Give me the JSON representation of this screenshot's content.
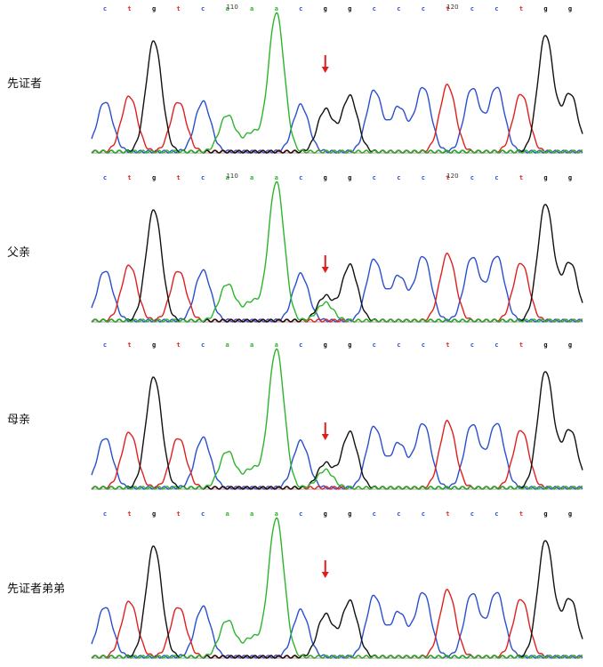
{
  "colors": {
    "A": "#2bb52b",
    "C": "#2a4fd0",
    "G": "#111111",
    "T": "#e02020",
    "arrow": "#e21b1b"
  },
  "sequence": [
    "C",
    "T",
    "G",
    "T",
    "C",
    "A",
    "A",
    "A",
    "C",
    "G",
    "G",
    "C",
    "C",
    "C",
    "T",
    "C",
    "C",
    "T",
    "G",
    "G"
  ],
  "base_display": [
    "c",
    "t",
    "g",
    "t",
    "c",
    "a",
    "a",
    "a",
    "c",
    "g",
    "g",
    "c",
    "c",
    "c",
    "t",
    "c",
    "c",
    "t",
    "g",
    "g"
  ],
  "mutation_index": 9,
  "panels": [
    {
      "id": "proband",
      "label": "先证者",
      "position_markers": [
        "110",
        "120"
      ],
      "mutation_state": "hom"
    },
    {
      "id": "father",
      "label": "父亲",
      "position_markers": [
        "110",
        "120"
      ],
      "mutation_state": "het"
    },
    {
      "id": "mother",
      "label": "母亲",
      "position_markers": [
        "",
        ""
      ],
      "mutation_state": "het"
    },
    {
      "id": "brother",
      "label": "先证者弟弟",
      "position_markers": [
        "",
        ""
      ],
      "mutation_state": "hom"
    }
  ],
  "peak_heights": [
    0.45,
    0.5,
    1.0,
    0.45,
    0.45,
    0.33,
    0.17,
    1.25,
    0.42,
    0.38,
    0.5,
    0.55,
    0.4,
    0.58,
    0.6,
    0.57,
    0.58,
    0.52,
    1.05,
    0.52
  ]
}
